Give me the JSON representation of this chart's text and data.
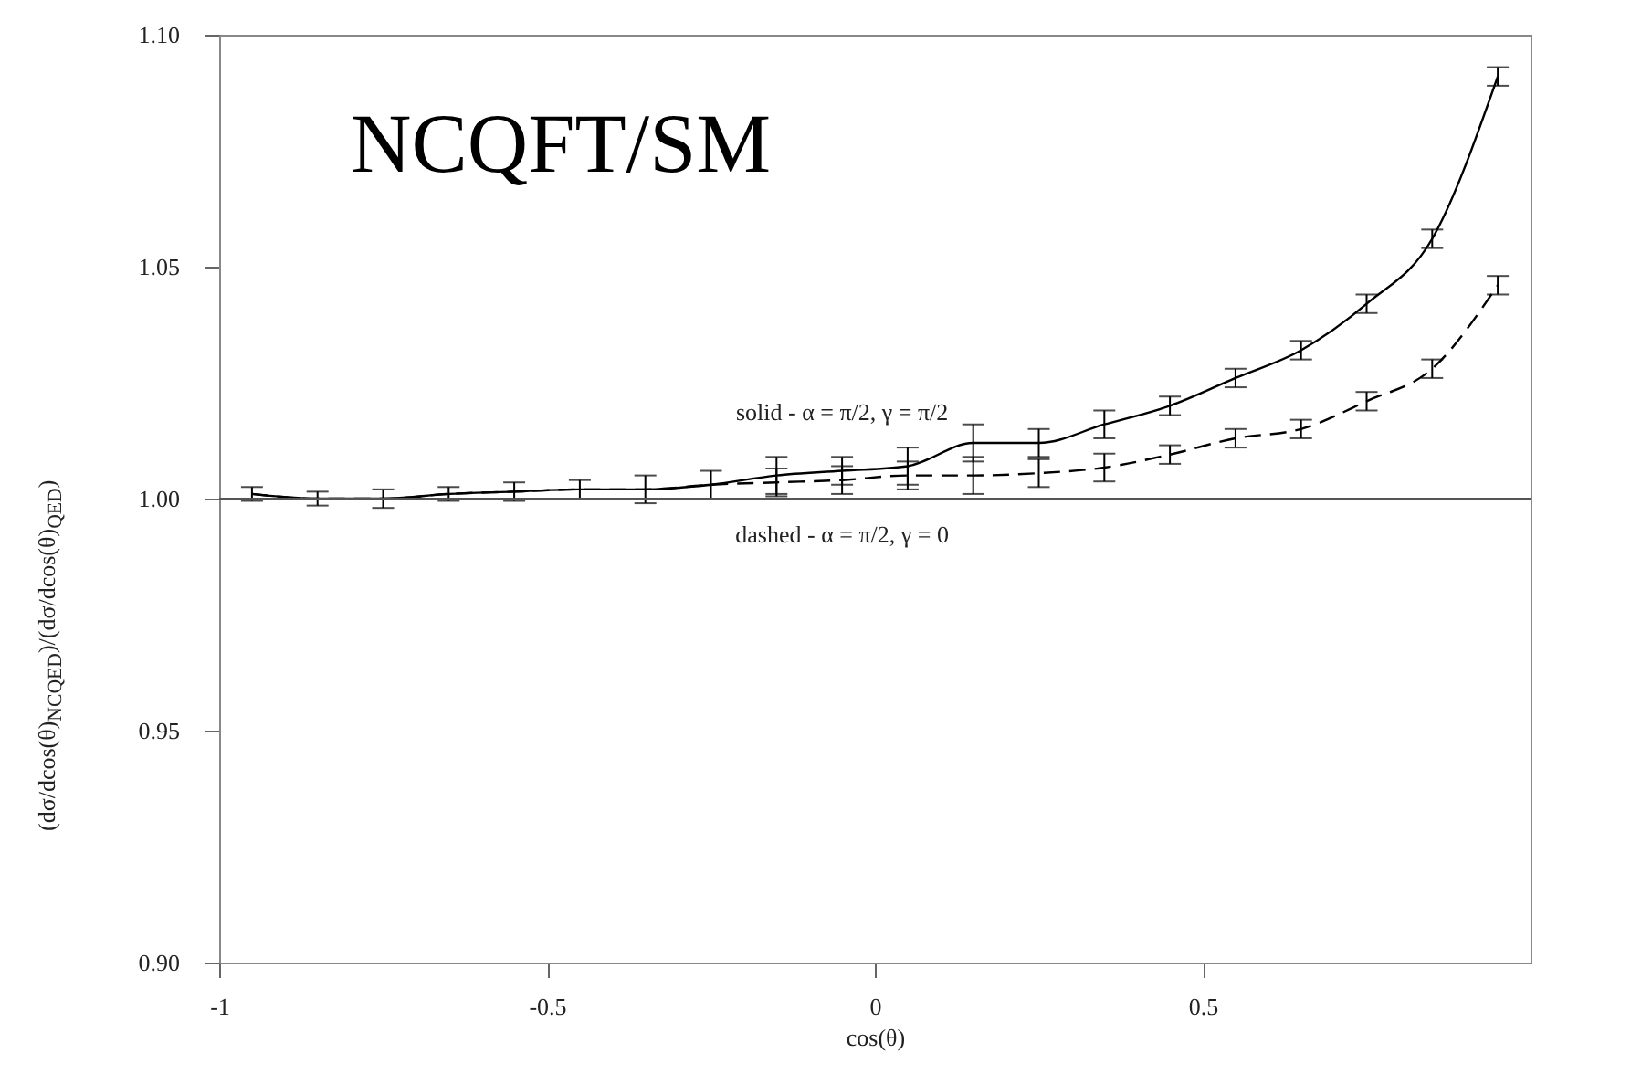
{
  "chart_data": {
    "type": "line",
    "xlabel": "cos(θ)",
    "ylabel": "(dσ/dcos(θ)$_{NCQED}$)/(dσ/dcos(θ)$_{QED}$)",
    "x": [
      -0.95,
      -0.85,
      -0.75,
      -0.65,
      -0.55,
      -0.45,
      -0.35,
      -0.25,
      -0.15,
      -0.05,
      0.05,
      0.15,
      0.25,
      0.35,
      0.45,
      0.55,
      0.65,
      0.75,
      0.85,
      0.95
    ],
    "series": [
      {
        "name": "solid - α = π/2, γ = π/2",
        "color": "#000000",
        "line_style": "solid",
        "values": [
          1.001,
          1.0,
          1.0,
          1.001,
          1.0015,
          1.002,
          1.002,
          1.003,
          1.005,
          1.006,
          1.007,
          1.012,
          1.012,
          1.016,
          1.02,
          1.026,
          1.032,
          1.042,
          1.056,
          1.091
        ],
        "errors": [
          0.0015,
          0.0015,
          0.002,
          0.0015,
          0.002,
          0.002,
          0.003,
          0.003,
          0.004,
          0.003,
          0.004,
          0.004,
          0.003,
          0.003,
          0.002,
          0.002,
          0.002,
          0.002,
          0.002,
          0.002
        ]
      },
      {
        "name": "dashed - α = π/2, γ = 0",
        "color": "#000000",
        "line_style": "dashed",
        "values": [
          1.001,
          1.0,
          1.0,
          1.001,
          1.0015,
          1.002,
          1.002,
          1.003,
          1.0035,
          1.004,
          1.005,
          1.005,
          1.0055,
          1.0067,
          1.0095,
          1.013,
          1.015,
          1.021,
          1.028,
          1.046
        ],
        "errors": [
          null,
          null,
          null,
          null,
          null,
          null,
          null,
          null,
          0.003,
          0.003,
          0.003,
          0.004,
          0.003,
          0.003,
          0.002,
          0.002,
          0.002,
          0.002,
          0.002,
          0.002
        ]
      }
    ],
    "xlim": [
      -1,
      1
    ],
    "ylim": [
      0.9,
      1.1
    ],
    "xticks": [
      -1,
      -0.5,
      0,
      0.5
    ],
    "yticks": [
      {
        "value": 0.9,
        "label": "0.90"
      },
      {
        "value": 0.95,
        "label": "0.95"
      },
      {
        "value": 1.0,
        "label": "1.00"
      },
      {
        "value": 1.05,
        "label": "1.05"
      },
      {
        "value": 1.1,
        "label": "1.10"
      }
    ],
    "ref_lines": [
      {
        "axis": "y",
        "value": 1.0
      }
    ],
    "annotations": [
      "NCQFT/SM"
    ],
    "grid": false,
    "marker": "none"
  }
}
